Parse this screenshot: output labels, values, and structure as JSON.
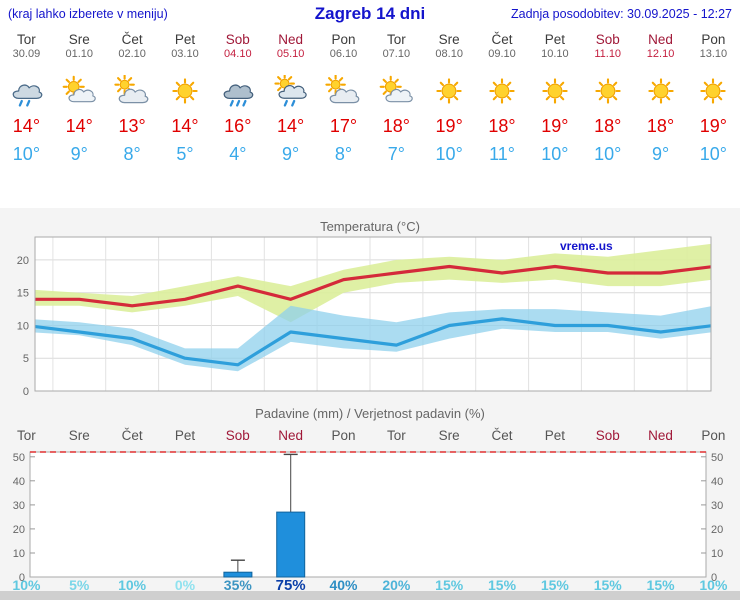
{
  "header": {
    "left_note": "(kraj lahko izberete v meniju)",
    "title": "Zagreb 14 dni",
    "last_update": "Zadnja posodobitev: 30.09.2025 - 12:27"
  },
  "colors": {
    "header_blue": "#1414cc",
    "weekday_name": "#3c3c3c",
    "weekday_date": "#666666",
    "weekend_name": "#a01838",
    "weekend_date": "#c42040",
    "tmax_red": "#e00000",
    "tmin_blue": "#38a9ea"
  },
  "days": [
    {
      "name": "Tor",
      "date": "30.09",
      "weekend": false,
      "icon": "showers",
      "tmax": "14°",
      "tmin": "10°"
    },
    {
      "name": "Sre",
      "date": "01.10",
      "weekend": false,
      "icon": "partly-cloudy",
      "tmax": "14°",
      "tmin": "9°"
    },
    {
      "name": "Čet",
      "date": "02.10",
      "weekend": false,
      "icon": "mostly-cloudy",
      "tmax": "13°",
      "tmin": "8°"
    },
    {
      "name": "Pet",
      "date": "03.10",
      "weekend": false,
      "icon": "sunny",
      "tmax": "14°",
      "tmin": "5°"
    },
    {
      "name": "Sob",
      "date": "04.10",
      "weekend": true,
      "icon": "rain",
      "tmax": "16°",
      "tmin": "4°"
    },
    {
      "name": "Ned",
      "date": "05.10",
      "weekend": true,
      "icon": "sun-showers",
      "tmax": "14°",
      "tmin": "9°"
    },
    {
      "name": "Pon",
      "date": "06.10",
      "weekend": false,
      "icon": "mostly-cloudy",
      "tmax": "17°",
      "tmin": "8°"
    },
    {
      "name": "Tor",
      "date": "07.10",
      "weekend": false,
      "icon": "partly-cloudy",
      "tmax": "18°",
      "tmin": "7°"
    },
    {
      "name": "Sre",
      "date": "08.10",
      "weekend": false,
      "icon": "sunny",
      "tmax": "19°",
      "tmin": "10°"
    },
    {
      "name": "Čet",
      "date": "09.10",
      "weekend": false,
      "icon": "sunny",
      "tmax": "18°",
      "tmin": "11°"
    },
    {
      "name": "Pet",
      "date": "10.10",
      "weekend": false,
      "icon": "sunny",
      "tmax": "19°",
      "tmin": "10°"
    },
    {
      "name": "Sob",
      "date": "11.10",
      "weekend": true,
      "icon": "sunny",
      "tmax": "18°",
      "tmin": "10°"
    },
    {
      "name": "Ned",
      "date": "12.10",
      "weekend": true,
      "icon": "sunny",
      "tmax": "18°",
      "tmin": "9°"
    },
    {
      "name": "Pon",
      "date": "13.10",
      "weekend": false,
      "icon": "sunny",
      "tmax": "19°",
      "tmin": "10°"
    }
  ],
  "chart_data": [
    {
      "type": "line",
      "title": "Temperatura (°C)",
      "watermark": "vreme.us",
      "categories": [
        "Tor",
        "Sre",
        "Čet",
        "Pet",
        "Sob",
        "Ned",
        "Pon",
        "Tor",
        "Sre",
        "Čet",
        "Pet",
        "Sob",
        "Ned",
        "Pon"
      ],
      "ylim": [
        0,
        23.5
      ],
      "yticks": [
        0,
        5,
        10,
        15,
        20
      ],
      "grid": true,
      "series": [
        {
          "name": "max-temperature",
          "color": "#d42a3a",
          "values": [
            14,
            14,
            13,
            14,
            16,
            14,
            17,
            18,
            19,
            18,
            19,
            18,
            18,
            19
          ]
        },
        {
          "name": "min-temperature",
          "color": "#2e9fdb",
          "values": [
            10,
            9,
            8,
            5,
            4,
            9,
            8,
            7,
            10,
            11,
            10,
            10,
            9,
            10
          ]
        }
      ],
      "bands": [
        {
          "name": "max-range",
          "color": "#dcee9b",
          "opacity": 0.9,
          "upper": [
            15.5,
            15,
            14.5,
            16,
            17.5,
            16,
            18.5,
            20,
            20.5,
            20,
            21,
            20.5,
            21.5,
            22.5
          ],
          "lower": [
            13,
            13,
            12,
            13,
            14.5,
            10.5,
            15,
            16.5,
            17,
            16.5,
            17,
            16,
            16,
            17
          ]
        },
        {
          "name": "min-range",
          "color": "#8fd0ec",
          "opacity": 0.75,
          "upper": [
            11,
            10.5,
            9.5,
            6.5,
            6.5,
            13,
            11.5,
            10.5,
            12,
            12.5,
            12.5,
            12,
            11.5,
            13
          ],
          "lower": [
            9,
            8.5,
            7,
            4,
            3,
            7.5,
            6.5,
            6,
            8,
            9.5,
            9,
            9,
            8,
            9
          ]
        }
      ]
    },
    {
      "type": "bar",
      "title": "Padavine (mm) / Verjetnost padavin (%)",
      "categories": [
        "Tor",
        "Sre",
        "Čet",
        "Pet",
        "Sob",
        "Ned",
        "Pon",
        "Tor",
        "Sre",
        "Čet",
        "Pet",
        "Sob",
        "Ned",
        "Pon"
      ],
      "ylim": [
        0,
        52
      ],
      "yticks": [
        0,
        10,
        20,
        30,
        40,
        50
      ],
      "bar_color": "#1f8fdc",
      "bar_border": "#11639c",
      "limit_line_color": "#e03030",
      "values_mm": [
        0,
        0,
        0,
        0,
        2,
        27,
        0,
        0,
        0,
        0,
        0,
        0,
        0,
        0
      ],
      "whisker_mm": [
        0,
        0,
        0,
        0,
        7,
        51,
        0,
        0,
        0,
        0,
        0,
        0,
        0,
        0
      ],
      "probabilities": [
        "10%",
        "5%",
        "10%",
        "0%",
        "35%",
        "75%",
        "40%",
        "20%",
        "15%",
        "15%",
        "15%",
        "15%",
        "15%",
        "10%"
      ],
      "prob_colors": [
        "#5fc8e0",
        "#7ad6e8",
        "#5fc8e0",
        "#90e2ef",
        "#3d95c2",
        "#0b3fa8",
        "#2f8fc4",
        "#4db4d8",
        "#5fc8e0",
        "#5fc8e0",
        "#5fc8e0",
        "#5fc8e0",
        "#5fc8e0",
        "#5fc8e0"
      ],
      "prob_highlight_index": 5
    }
  ]
}
